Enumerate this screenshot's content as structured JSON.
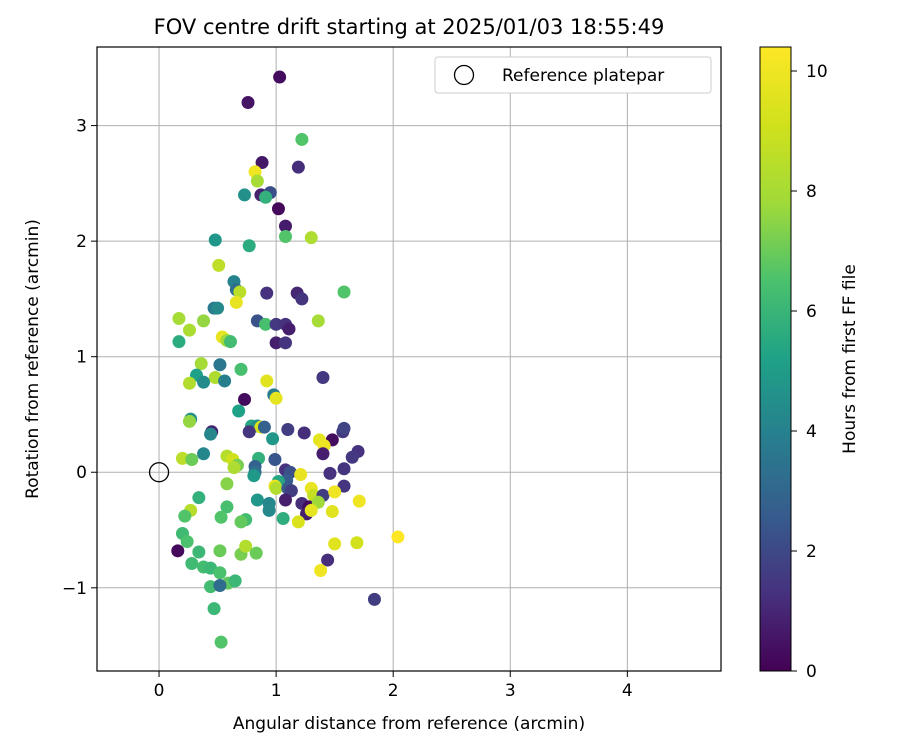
{
  "chart_data": {
    "type": "scatter",
    "title": "FOV centre drift starting at 2025/01/03 18:55:49",
    "xlabel": "Angular distance from reference (arcmin)",
    "ylabel": "Rotation from reference (arcmin)",
    "xlim": [
      -0.53,
      4.8
    ],
    "ylim": [
      -1.72,
      3.68
    ],
    "xticks": [
      "0",
      "1",
      "2",
      "3",
      "4"
    ],
    "yticks": [
      "−1",
      "0",
      "1",
      "2",
      "3"
    ],
    "grid": true,
    "legend": {
      "position": "top-right",
      "entries": [
        "Reference platepar"
      ]
    },
    "reference_point": {
      "x": 0,
      "y": 0
    },
    "colorbar": {
      "label": "Hours from first FF file",
      "range": [
        0,
        10.4
      ],
      "ticks": [
        "0",
        "2",
        "4",
        "6",
        "8",
        "10"
      ],
      "colormap": "viridis"
    },
    "points": [
      {
        "x": 1.03,
        "y": 3.42,
        "h": 0.3
      },
      {
        "x": 0.76,
        "y": 3.2,
        "h": 0.5
      },
      {
        "x": 0.88,
        "y": 2.68,
        "h": 0.6
      },
      {
        "x": 1.19,
        "y": 2.64,
        "h": 1.2
      },
      {
        "x": 1.22,
        "y": 2.88,
        "h": 6.6
      },
      {
        "x": 0.82,
        "y": 2.6,
        "h": 10
      },
      {
        "x": 0.84,
        "y": 2.52,
        "h": 8
      },
      {
        "x": 0.87,
        "y": 2.4,
        "h": 0.9
      },
      {
        "x": 0.95,
        "y": 2.42,
        "h": 2.2
      },
      {
        "x": 0.73,
        "y": 2.4,
        "h": 4.6
      },
      {
        "x": 0.91,
        "y": 2.38,
        "h": 5.8
      },
      {
        "x": 1.02,
        "y": 2.28,
        "h": 0.2
      },
      {
        "x": 1.08,
        "y": 2.13,
        "h": 0.7
      },
      {
        "x": 1.08,
        "y": 2.04,
        "h": 6.6
      },
      {
        "x": 1.3,
        "y": 2.03,
        "h": 8.2
      },
      {
        "x": 0.48,
        "y": 2.01,
        "h": 4.8
      },
      {
        "x": 0.77,
        "y": 1.96,
        "h": 5.6
      },
      {
        "x": 0.51,
        "y": 1.79,
        "h": 8.6
      },
      {
        "x": 0.64,
        "y": 1.65,
        "h": 4
      },
      {
        "x": 0.66,
        "y": 1.58,
        "h": 3.2
      },
      {
        "x": 0.69,
        "y": 1.56,
        "h": 8.5
      },
      {
        "x": 0.92,
        "y": 1.55,
        "h": 1.3
      },
      {
        "x": 1.18,
        "y": 1.55,
        "h": 1
      },
      {
        "x": 1.22,
        "y": 1.5,
        "h": 1.4
      },
      {
        "x": 1.58,
        "y": 1.56,
        "h": 6.6
      },
      {
        "x": 0.66,
        "y": 1.47,
        "h": 9.8
      },
      {
        "x": 0.47,
        "y": 1.42,
        "h": 3.7
      },
      {
        "x": 0.5,
        "y": 1.42,
        "h": 4.3
      },
      {
        "x": 0.17,
        "y": 1.33,
        "h": 8
      },
      {
        "x": 0.38,
        "y": 1.31,
        "h": 7.6
      },
      {
        "x": 0.84,
        "y": 1.31,
        "h": 2.3
      },
      {
        "x": 0.91,
        "y": 1.28,
        "h": 6.4
      },
      {
        "x": 1.0,
        "y": 1.28,
        "h": 1.5
      },
      {
        "x": 1.08,
        "y": 1.28,
        "h": 1.3
      },
      {
        "x": 1.11,
        "y": 1.24,
        "h": 0.8
      },
      {
        "x": 1.36,
        "y": 1.31,
        "h": 8
      },
      {
        "x": 0.26,
        "y": 1.23,
        "h": 8.1
      },
      {
        "x": 0.54,
        "y": 1.17,
        "h": 9.8
      },
      {
        "x": 0.58,
        "y": 1.14,
        "h": 7.8
      },
      {
        "x": 0.61,
        "y": 1.13,
        "h": 6.3
      },
      {
        "x": 0.17,
        "y": 1.13,
        "h": 5.6
      },
      {
        "x": 1.0,
        "y": 1.12,
        "h": 0.8
      },
      {
        "x": 1.08,
        "y": 1.12,
        "h": 1.4
      },
      {
        "x": 0.36,
        "y": 0.94,
        "h": 7.9
      },
      {
        "x": 0.52,
        "y": 0.93,
        "h": 3.6
      },
      {
        "x": 0.32,
        "y": 0.84,
        "h": 5.2
      },
      {
        "x": 0.48,
        "y": 0.82,
        "h": 8.2
      },
      {
        "x": 0.38,
        "y": 0.78,
        "h": 4.4
      },
      {
        "x": 0.56,
        "y": 0.79,
        "h": 3.9
      },
      {
        "x": 0.26,
        "y": 0.77,
        "h": 8.3
      },
      {
        "x": 0.7,
        "y": 0.89,
        "h": 6.4
      },
      {
        "x": 0.92,
        "y": 0.79,
        "h": 9.6
      },
      {
        "x": 1.4,
        "y": 0.82,
        "h": 1.5
      },
      {
        "x": 0.98,
        "y": 0.67,
        "h": 3.8
      },
      {
        "x": 1.0,
        "y": 0.64,
        "h": 9.7
      },
      {
        "x": 0.73,
        "y": 0.63,
        "h": 0.3
      },
      {
        "x": 0.68,
        "y": 0.53,
        "h": 5.2
      },
      {
        "x": 0.27,
        "y": 0.46,
        "h": 4.6
      },
      {
        "x": 0.26,
        "y": 0.44,
        "h": 7.6
      },
      {
        "x": 0.79,
        "y": 0.4,
        "h": 5.4
      },
      {
        "x": 0.84,
        "y": 0.4,
        "h": 4.5
      },
      {
        "x": 0.87,
        "y": 0.39,
        "h": 9.3
      },
      {
        "x": 0.9,
        "y": 0.39,
        "h": 2.8
      },
      {
        "x": 0.77,
        "y": 0.35,
        "h": 1.4
      },
      {
        "x": 0.45,
        "y": 0.35,
        "h": 0.9
      },
      {
        "x": 0.44,
        "y": 0.33,
        "h": 4.2
      },
      {
        "x": 1.1,
        "y": 0.37,
        "h": 1.6
      },
      {
        "x": 1.24,
        "y": 0.34,
        "h": 1.2
      },
      {
        "x": 1.57,
        "y": 0.35,
        "h": 1.5
      },
      {
        "x": 1.58,
        "y": 0.38,
        "h": 1.9
      },
      {
        "x": 0.97,
        "y": 0.29,
        "h": 4.8
      },
      {
        "x": 1.48,
        "y": 0.28,
        "h": 0.3
      },
      {
        "x": 1.37,
        "y": 0.28,
        "h": 9.7
      },
      {
        "x": 1.41,
        "y": 0.23,
        "h": 10
      },
      {
        "x": 1.7,
        "y": 0.18,
        "h": 1.3
      },
      {
        "x": 1.65,
        "y": 0.13,
        "h": 1.5
      },
      {
        "x": 1.4,
        "y": 0.16,
        "h": 0.8
      },
      {
        "x": 0.38,
        "y": 0.16,
        "h": 4.2
      },
      {
        "x": 0.58,
        "y": 0.14,
        "h": 8.4
      },
      {
        "x": 0.63,
        "y": 0.11,
        "h": 9.1
      },
      {
        "x": 0.2,
        "y": 0.12,
        "h": 8.5
      },
      {
        "x": 0.28,
        "y": 0.11,
        "h": 7
      },
      {
        "x": 0.85,
        "y": 0.12,
        "h": 5.8
      },
      {
        "x": 0.99,
        "y": 0.11,
        "h": 2.4
      },
      {
        "x": 0.67,
        "y": 0.06,
        "h": 7.2
      },
      {
        "x": 0.64,
        "y": 0.04,
        "h": 8.2
      },
      {
        "x": 0.82,
        "y": 0.05,
        "h": 2.8
      },
      {
        "x": 0.82,
        "y": 0.0,
        "h": 3.3
      },
      {
        "x": 0.81,
        "y": -0.03,
        "h": 4.9
      },
      {
        "x": 1.08,
        "y": 0.02,
        "h": 1.3
      },
      {
        "x": 1.12,
        "y": 0.0,
        "h": 2.2
      },
      {
        "x": 1.21,
        "y": -0.02,
        "h": 9.8
      },
      {
        "x": 1.46,
        "y": -0.01,
        "h": 1.3
      },
      {
        "x": 1.58,
        "y": 0.03,
        "h": 1.4
      },
      {
        "x": 1.09,
        "y": -0.07,
        "h": 2.6
      },
      {
        "x": 1.02,
        "y": -0.08,
        "h": 5.4
      },
      {
        "x": 0.99,
        "y": -0.12,
        "h": 9.8
      },
      {
        "x": 1.0,
        "y": -0.14,
        "h": 8.3
      },
      {
        "x": 1.1,
        "y": -0.14,
        "h": 2.5
      },
      {
        "x": 1.13,
        "y": -0.16,
        "h": 1.6
      },
      {
        "x": 1.3,
        "y": -0.14,
        "h": 9.8
      },
      {
        "x": 1.58,
        "y": -0.12,
        "h": 1.4
      },
      {
        "x": 1.32,
        "y": -0.2,
        "h": 8.8
      },
      {
        "x": 1.4,
        "y": -0.2,
        "h": 1.6
      },
      {
        "x": 1.5,
        "y": -0.17,
        "h": 10
      },
      {
        "x": 0.58,
        "y": -0.1,
        "h": 7.4
      },
      {
        "x": 0.34,
        "y": -0.22,
        "h": 5.8
      },
      {
        "x": 0.84,
        "y": -0.24,
        "h": 4.8
      },
      {
        "x": 0.94,
        "y": -0.27,
        "h": 4.2
      },
      {
        "x": 1.08,
        "y": -0.24,
        "h": 0.8
      },
      {
        "x": 1.22,
        "y": -0.27,
        "h": 1.2
      },
      {
        "x": 1.28,
        "y": -0.3,
        "h": 0.3
      },
      {
        "x": 1.36,
        "y": -0.26,
        "h": 7.8
      },
      {
        "x": 1.26,
        "y": -0.36,
        "h": 0.8
      },
      {
        "x": 1.3,
        "y": -0.33,
        "h": 9.7
      },
      {
        "x": 1.48,
        "y": -0.34,
        "h": 9.6
      },
      {
        "x": 1.71,
        "y": -0.25,
        "h": 10
      },
      {
        "x": 0.27,
        "y": -0.33,
        "h": 8.4
      },
      {
        "x": 0.22,
        "y": -0.38,
        "h": 6.6
      },
      {
        "x": 0.58,
        "y": -0.3,
        "h": 6.4
      },
      {
        "x": 0.53,
        "y": -0.39,
        "h": 6.6
      },
      {
        "x": 0.94,
        "y": -0.33,
        "h": 4.3
      },
      {
        "x": 1.06,
        "y": -0.4,
        "h": 5.7
      },
      {
        "x": 1.19,
        "y": -0.43,
        "h": 9.4
      },
      {
        "x": 0.74,
        "y": -0.41,
        "h": 6.3
      },
      {
        "x": 0.7,
        "y": -0.43,
        "h": 6.9
      },
      {
        "x": 0.2,
        "y": -0.53,
        "h": 6.2
      },
      {
        "x": 0.24,
        "y": -0.6,
        "h": 6.5
      },
      {
        "x": 1.5,
        "y": -0.62,
        "h": 9.6
      },
      {
        "x": 1.69,
        "y": -0.61,
        "h": 9.2
      },
      {
        "x": 2.04,
        "y": -0.56,
        "h": 10.4
      },
      {
        "x": 0.16,
        "y": -0.68,
        "h": 0.2
      },
      {
        "x": 0.34,
        "y": -0.69,
        "h": 6.1
      },
      {
        "x": 0.52,
        "y": -0.68,
        "h": 7
      },
      {
        "x": 0.7,
        "y": -0.71,
        "h": 7.2
      },
      {
        "x": 0.74,
        "y": -0.64,
        "h": 8.3
      },
      {
        "x": 0.83,
        "y": -0.7,
        "h": 7
      },
      {
        "x": 1.44,
        "y": -0.76,
        "h": 1.2
      },
      {
        "x": 0.28,
        "y": -0.79,
        "h": 6.2
      },
      {
        "x": 0.38,
        "y": -0.82,
        "h": 6.3
      },
      {
        "x": 0.44,
        "y": -0.83,
        "h": 6.1
      },
      {
        "x": 0.52,
        "y": -0.87,
        "h": 6.5
      },
      {
        "x": 1.38,
        "y": -0.85,
        "h": 10
      },
      {
        "x": 0.59,
        "y": -0.96,
        "h": 6.8
      },
      {
        "x": 0.65,
        "y": -0.94,
        "h": 6.1
      },
      {
        "x": 0.44,
        "y": -0.99,
        "h": 6.3
      },
      {
        "x": 0.52,
        "y": -0.98,
        "h": 3.2
      },
      {
        "x": 1.84,
        "y": -1.1,
        "h": 1.6
      },
      {
        "x": 0.47,
        "y": -1.18,
        "h": 6.1
      },
      {
        "x": 0.53,
        "y": -1.47,
        "h": 6.6
      }
    ]
  }
}
